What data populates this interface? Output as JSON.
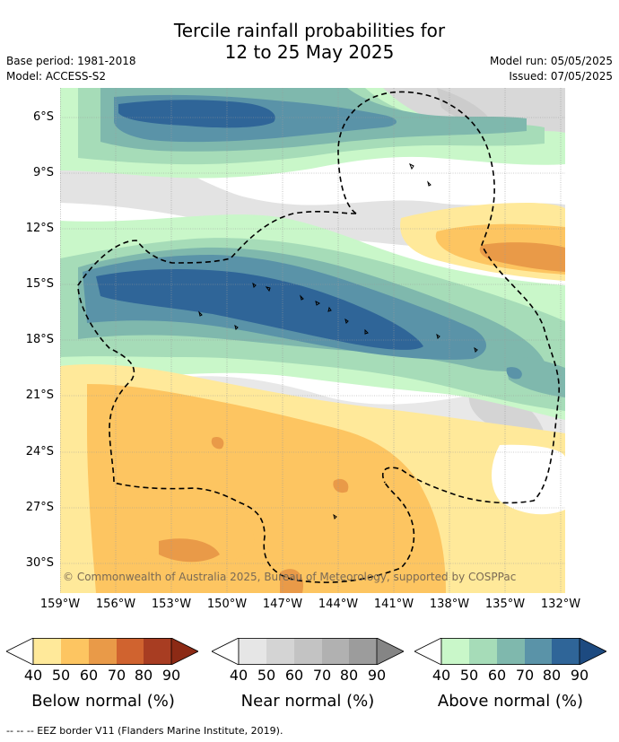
{
  "title_line1": "Tercile rainfall probabilities for",
  "title_line2": "12 to 25 May 2025",
  "base_period": "Base period: 1981-2018",
  "model": "Model: ACCESS-S2",
  "model_run": "Model run: 05/05/2025",
  "issued": "Issued: 07/05/2025",
  "credit": "© Commonwealth of Australia 2025, Bureau of Meteorology, supported by COSPPac",
  "lat_labels": [
    "6°S",
    "9°S",
    "12°S",
    "15°S",
    "18°S",
    "21°S",
    "24°S",
    "27°S",
    "30°S"
  ],
  "lon_labels": [
    "159°W",
    "156°W",
    "153°W",
    "150°W",
    "147°W",
    "144°W",
    "141°W",
    "138°W",
    "135°W",
    "132°W"
  ],
  "legends": [
    {
      "title": "Below normal (%)",
      "ticks": [
        "40",
        "50",
        "60",
        "70",
        "80",
        "90"
      ],
      "colors": [
        "#ffe99a",
        "#fdc561",
        "#e99a48",
        "#d0632f",
        "#a83d22",
        "#8c2a15"
      ]
    },
    {
      "title": "Near normal (%)",
      "ticks": [
        "40",
        "50",
        "60",
        "70",
        "80",
        "90"
      ],
      "colors": [
        "#e6e6e6",
        "#d4d4d4",
        "#c3c3c3",
        "#b1b1b1",
        "#9c9c9c",
        "#858585"
      ]
    },
    {
      "title": "Above normal (%)",
      "ticks": [
        "40",
        "50",
        "60",
        "70",
        "80",
        "90"
      ],
      "colors": [
        "#c9f7c9",
        "#a6dcb8",
        "#7fb8ad",
        "#5a93a8",
        "#2f6598",
        "#1d4a80"
      ]
    }
  ],
  "footer": "--  --  -- EEZ border V11 (Flanders Marine Institute, 2019)."
}
